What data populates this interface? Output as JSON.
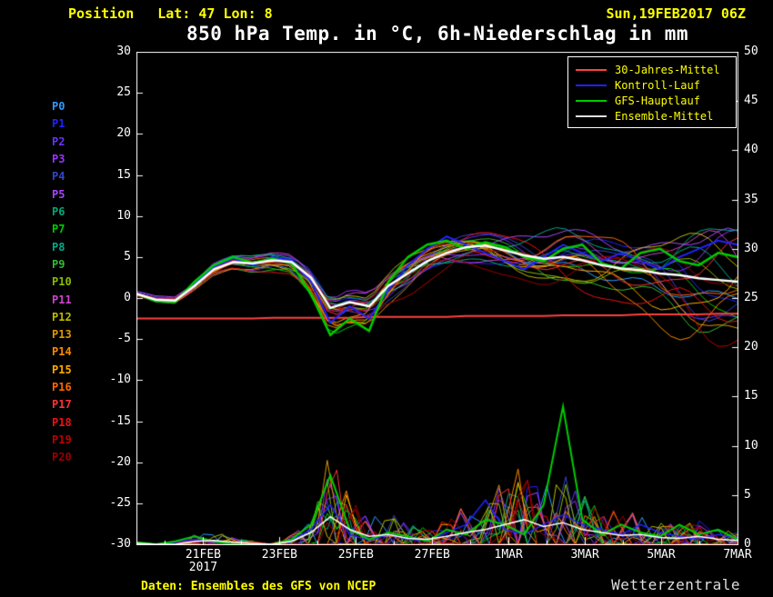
{
  "header": {
    "position_label": "Position",
    "coords": "Lat: 47 Lon: 8",
    "datetime": "Sun,19FEB2017 06Z",
    "title": "850 hPa Temp. in °C, 6h-Niederschlag in mm"
  },
  "footer": {
    "source": "Daten: Ensembles des GFS von NCEP",
    "brand": "Wetterzentrale"
  },
  "colors": {
    "background": "#000000",
    "axis": "#ffffff",
    "header_text": "#ffff00"
  },
  "legend": {
    "items": [
      {
        "label": "30-Jahres-Mittel",
        "color": "#ff4040"
      },
      {
        "label": "Kontroll-Lauf",
        "color": "#2222ff"
      },
      {
        "label": "GFS-Hauptlauf",
        "color": "#00cc00"
      },
      {
        "label": "Ensemble-Mittel",
        "color": "#e0e0e0"
      }
    ]
  },
  "members": [
    {
      "name": "P0",
      "color": "#2e9bff"
    },
    {
      "name": "P1",
      "color": "#2222ff"
    },
    {
      "name": "P2",
      "color": "#6633ff"
    },
    {
      "name": "P3",
      "color": "#9933ff"
    },
    {
      "name": "P4",
      "color": "#3344cc"
    },
    {
      "name": "P5",
      "color": "#aa44ff"
    },
    {
      "name": "P6",
      "color": "#00a878"
    },
    {
      "name": "P7",
      "color": "#00cc00"
    },
    {
      "name": "P8",
      "color": "#00aa88"
    },
    {
      "name": "P9",
      "color": "#33bb33"
    },
    {
      "name": "P10",
      "color": "#88bb00"
    },
    {
      "name": "P11",
      "color": "#cc44cc"
    },
    {
      "name": "P12",
      "color": "#bbbb00"
    },
    {
      "name": "P13",
      "color": "#dd9900"
    },
    {
      "name": "P14",
      "color": "#ff8800"
    },
    {
      "name": "P15",
      "color": "#ffaa00"
    },
    {
      "name": "P16",
      "color": "#ff6600"
    },
    {
      "name": "P17",
      "color": "#ff3333"
    },
    {
      "name": "P18",
      "color": "#ee1111"
    },
    {
      "name": "P19",
      "color": "#bb0000"
    },
    {
      "name": "P20",
      "color": "#990000"
    }
  ],
  "chart_data": {
    "type": "line",
    "title": "850 hPa Temp. in °C, 6h-Niederschlag in mm",
    "x_total_days": 15.75,
    "x_start": "19FEB2017 06Z",
    "x_ticks": [
      {
        "t": 1.75,
        "label": "21FEB"
      },
      {
        "t": 3.75,
        "label": "23FEB"
      },
      {
        "t": 5.75,
        "label": "25FEB"
      },
      {
        "t": 7.75,
        "label": "27FEB"
      },
      {
        "t": 9.75,
        "label": "1MAR"
      },
      {
        "t": 11.75,
        "label": "3MAR"
      },
      {
        "t": 13.75,
        "label": "5MAR"
      },
      {
        "t": 15.75,
        "label": "7MAR"
      }
    ],
    "x_year_label": "2017",
    "x_day_tick_start": 0.75,
    "x_day_tick_step": 1,
    "y_left": {
      "name": "temperature_C",
      "min": -30,
      "max": 30,
      "ticks": [
        30,
        25,
        20,
        15,
        10,
        5,
        0,
        -5,
        -10,
        -15,
        -20,
        -25,
        -30
      ]
    },
    "y_right": {
      "name": "precip_mm_6h",
      "min": 0,
      "max": 50,
      "ticks": [
        50,
        45,
        40,
        35,
        30,
        25,
        20,
        15,
        10,
        5,
        0
      ]
    },
    "ensemble_spread": [
      0.3,
      0.4,
      0.5,
      0.6,
      0.8,
      0.9,
      1.0,
      1.2,
      1.5,
      2.5,
      3.5,
      3.2,
      3.0,
      2.8,
      2.5,
      2.2,
      2.5,
      2.6,
      2.8,
      3.0,
      3.3,
      3.6,
      4.0,
      4.4,
      4.8,
      5.2,
      5.6,
      6.0,
      6.4,
      6.8,
      7.2,
      7.8
    ],
    "series": [
      {
        "id": "climate",
        "name": "30-Jahres-Mittel",
        "axis": "temp",
        "color": "#ff4040",
        "width": 2,
        "values": [
          -2.5,
          -2.5,
          -2.5,
          -2.5,
          -2.5,
          -2.5,
          -2.5,
          -2.4,
          -2.4,
          -2.4,
          -2.4,
          -2.4,
          -2.3,
          -2.3,
          -2.3,
          -2.3,
          -2.3,
          -2.2,
          -2.2,
          -2.2,
          -2.2,
          -2.2,
          -2.1,
          -2.1,
          -2.1,
          -2.1,
          -2.0,
          -2.0,
          -2.0,
          -2.0,
          -1.9,
          -1.9
        ]
      },
      {
        "id": "control",
        "name": "Kontroll-Lauf",
        "axis": "temp",
        "color": "#2222ff",
        "width": 2,
        "values": [
          0.5,
          -0.3,
          -0.4,
          1.8,
          3.8,
          4.8,
          4.0,
          5.0,
          4.6,
          2.0,
          -3.0,
          -1.0,
          -2.5,
          1.0,
          4.0,
          6.0,
          7.5,
          6.5,
          5.5,
          4.5,
          3.5,
          5.0,
          6.5,
          5.5,
          4.5,
          5.5,
          4.5,
          3.5,
          5.0,
          6.0,
          7.0,
          6.5
        ]
      },
      {
        "id": "control_precip",
        "name": "Kontroll-Lauf Niederschlag",
        "axis": "precip",
        "color": "#2222ff",
        "width": 1.5,
        "values": [
          0.1,
          0.0,
          0.2,
          0.5,
          0.2,
          0.0,
          0.0,
          0.0,
          0.4,
          1.5,
          4.0,
          1.0,
          0.4,
          1.0,
          0.5,
          0.4,
          1.2,
          2.0,
          4.5,
          1.5,
          1.0,
          2.0,
          3.0,
          2.0,
          1.5,
          1.0,
          2.0,
          1.2,
          0.8,
          0.5,
          1.0,
          0.6
        ]
      },
      {
        "id": "main",
        "name": "GFS-Hauptlauf",
        "axis": "temp",
        "color": "#00cc00",
        "width": 2.5,
        "values": [
          0.5,
          -0.4,
          -0.5,
          2.0,
          4.0,
          5.0,
          4.3,
          4.8,
          4.2,
          0.5,
          -4.5,
          -2.5,
          -4.0,
          2.0,
          5.0,
          6.5,
          7.0,
          6.0,
          6.8,
          6.2,
          5.0,
          4.5,
          6.0,
          6.5,
          4.2,
          3.6,
          5.5,
          6.0,
          4.5,
          4.0,
          5.5,
          5.0
        ]
      },
      {
        "id": "main_precip",
        "name": "GFS-Hauptlauf Niederschlag",
        "axis": "precip",
        "color": "#00cc00",
        "width": 2,
        "values": [
          0.2,
          0.0,
          0.3,
          0.8,
          0.3,
          0.0,
          0.0,
          0.0,
          0.5,
          2.0,
          7.0,
          1.5,
          0.5,
          1.2,
          0.8,
          0.3,
          1.5,
          1.0,
          2.5,
          2.0,
          1.0,
          4.0,
          14.0,
          2.5,
          1.0,
          2.0,
          1.2,
          0.8,
          2.0,
          1.0,
          1.5,
          0.5
        ]
      },
      {
        "id": "mean",
        "name": "Ensemble-Mittel",
        "axis": "temp",
        "color": "#ffffff",
        "width": 2.5,
        "values": [
          0.5,
          -0.2,
          -0.3,
          1.5,
          3.5,
          4.4,
          4.2,
          4.6,
          4.4,
          2.5,
          -1.2,
          -0.5,
          -1.0,
          1.5,
          3.0,
          4.5,
          5.5,
          6.2,
          6.4,
          5.8,
          5.2,
          4.8,
          5.0,
          4.6,
          4.0,
          3.6,
          3.4,
          3.0,
          2.8,
          2.4,
          2.2,
          2.0
        ]
      },
      {
        "id": "mean_precip",
        "name": "Ensemble-Mittel Niederschlag",
        "axis": "precip",
        "color": "#ffffff",
        "width": 1.5,
        "values": [
          0.1,
          0.0,
          0.0,
          0.3,
          0.4,
          0.2,
          0.1,
          0.0,
          0.3,
          1.2,
          2.8,
          1.5,
          0.8,
          1.0,
          0.6,
          0.5,
          0.8,
          1.2,
          1.5,
          2.0,
          2.5,
          1.8,
          2.2,
          1.5,
          1.2,
          0.9,
          1.0,
          0.7,
          0.6,
          0.8,
          0.5,
          0.4
        ]
      }
    ]
  }
}
